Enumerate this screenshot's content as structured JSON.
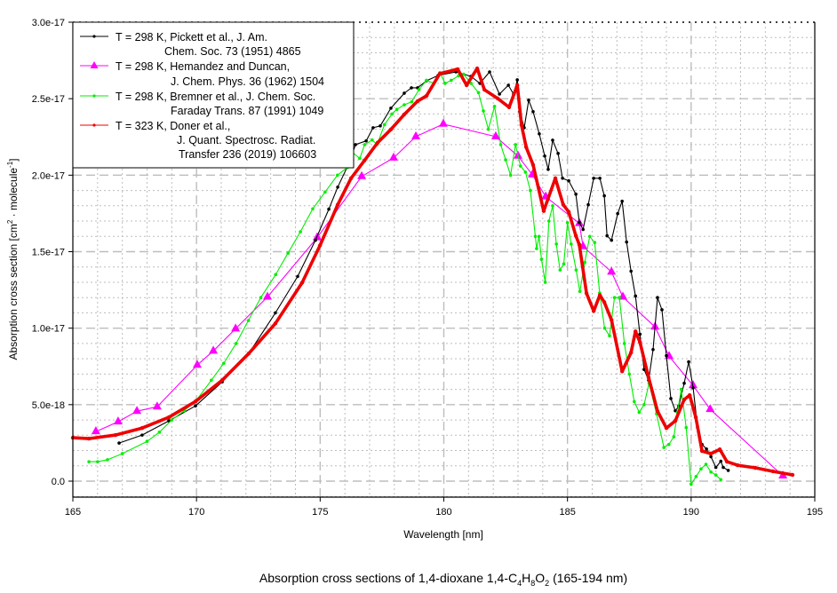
{
  "chart_data": {
    "type": "line",
    "title": "Absorption cross sections of 1,4-dioxane 1,4-C4H8O2 (165-194 nm)",
    "title_parts": {
      "prefix": "Absorption cross sections of 1,4-dioxane 1,4-C",
      "s1": "4",
      "h": "H",
      "s2": "8",
      "o": "O",
      "s3": "2",
      "suffix": " (165-194 nm)"
    },
    "xlabel": "Wavelength [nm]",
    "ylabel": "Absorption cross section [cm2 · molecule-1]",
    "ylabel_parts": {
      "prefix": "Absorption cross section [cm",
      "sup1": "2",
      "mid": " · molecule",
      "sup2": "-1",
      "suffix": "]"
    },
    "xlim": [
      165,
      195
    ],
    "ylim": [
      -1.05e-18,
      3e-17
    ],
    "grid": true,
    "legend_position": "top-left",
    "x_ticks": [
      165,
      170,
      175,
      180,
      185,
      190,
      195
    ],
    "x_tick_labels": [
      "165",
      "170",
      "175",
      "180",
      "185",
      "190",
      "195"
    ],
    "y_ticks": [
      0,
      5e-18,
      1e-17,
      1.5e-17,
      2e-17,
      2.5e-17,
      3e-17
    ],
    "y_tick_labels": [
      "0.0",
      "5.0e-18",
      "1.0e-17",
      "1.5e-17",
      "2.0e-17",
      "2.5e-17",
      "3.0e-17"
    ],
    "y_unit_scale": 1e-18,
    "series": [
      {
        "name": "Pickett",
        "legend_line1": "T = 298 K, Pickett et al., J. Am.",
        "legend_line2": "Chem. Soc. 73 (1951) 4865",
        "color": "#000000",
        "marker": "dot",
        "x": [
          166.87,
          167.8,
          168.88,
          169.96,
          171.04,
          172.11,
          173.19,
          174.09,
          174.81,
          175.35,
          175.71,
          176.17,
          176.43,
          176.86,
          177.14,
          177.43,
          177.86,
          178.4,
          178.69,
          178.94,
          179.3,
          179.77,
          180.49,
          181.1,
          181.46,
          181.85,
          182.25,
          182.61,
          182.82,
          182.97,
          183.07,
          183.25,
          183.43,
          183.61,
          183.86,
          184.08,
          184.22,
          184.4,
          184.62,
          184.8,
          185.05,
          185.34,
          185.48,
          185.63,
          185.84,
          186.06,
          186.31,
          186.49,
          186.6,
          186.78,
          187.03,
          187.21,
          187.39,
          187.57,
          187.75,
          187.93,
          188.1,
          188.28,
          188.46,
          188.64,
          188.82,
          189.0,
          189.18,
          189.36,
          189.5,
          189.72,
          189.9,
          190.08,
          190.26,
          190.44,
          190.62,
          190.8,
          191.0,
          191.2,
          191.3,
          191.5
        ],
        "y": [
          2.49,
          3.01,
          3.94,
          4.92,
          6.49,
          8.34,
          11.0,
          13.38,
          15.75,
          17.78,
          19.22,
          20.79,
          22.0,
          22.24,
          23.1,
          23.22,
          24.38,
          25.36,
          25.71,
          25.71,
          26.17,
          26.52,
          26.75,
          26.46,
          26.0,
          26.75,
          25.3,
          25.88,
          25.3,
          26.23,
          24.15,
          23.1,
          24.9,
          24.15,
          22.7,
          21.25,
          20.38,
          22.29,
          21.42,
          19.8,
          19.63,
          18.76,
          16.91,
          16.45,
          18.07,
          19.8,
          19.8,
          18.65,
          16.04,
          15.75,
          17.49,
          18.3,
          15.63,
          13.72,
          12.1,
          9.6,
          7.3,
          6.6,
          8.6,
          12.0,
          11.2,
          8.2,
          5.4,
          4.6,
          4.9,
          6.4,
          7.8,
          6.1,
          3.5,
          2.4,
          2.1,
          1.6,
          0.9,
          1.3,
          0.9,
          0.7
        ]
      },
      {
        "name": "Hernandez",
        "legend_line1": "T = 298 K, Hemandez and Duncan,",
        "legend_line2": "J. Chem. Phys. 36 (1962) 1504",
        "color": "#ff00ff",
        "marker": "triangle",
        "x": [
          165.93,
          166.83,
          167.59,
          168.41,
          170.03,
          170.68,
          171.58,
          172.87,
          174.88,
          176.68,
          177.97,
          178.87,
          179.98,
          182.1,
          183.0,
          183.58,
          184.12,
          185.48,
          185.63,
          186.78,
          187.24,
          188.54,
          189.11,
          190.08,
          190.77,
          193.71
        ],
        "y": [
          3.24,
          3.88,
          4.57,
          4.86,
          7.59,
          8.51,
          9.96,
          12.04,
          15.92,
          19.92,
          21.13,
          22.52,
          23.34,
          22.52,
          21.25,
          20.03,
          18.59,
          16.85,
          15.34,
          13.67,
          12.04,
          10.08,
          8.16,
          6.25,
          4.69,
          0.35
        ]
      },
      {
        "name": "Bremner",
        "legend_line1": "T = 298 K, Bremner et al., J. Chem. Soc.",
        "legend_line2": "Faraday Trans. 87 (1991) 1049",
        "color": "#00ee00",
        "marker": "dot",
        "x": [
          165.65,
          166.0,
          166.4,
          167.0,
          168.0,
          168.5,
          169.0,
          169.5,
          170.0,
          170.6,
          171.1,
          171.6,
          172.1,
          172.6,
          173.2,
          173.7,
          174.2,
          174.7,
          175.2,
          175.7,
          176.1,
          176.3,
          176.6,
          176.8,
          177.1,
          177.3,
          177.6,
          177.9,
          178.1,
          178.4,
          178.7,
          179.0,
          179.3,
          179.6,
          179.84,
          180.05,
          180.3,
          180.6,
          180.8,
          181.1,
          181.4,
          181.6,
          181.8,
          182.05,
          182.3,
          182.5,
          182.7,
          182.9,
          183.1,
          183.3,
          183.5,
          183.7,
          183.75,
          183.85,
          183.95,
          184.1,
          184.25,
          184.4,
          184.55,
          184.7,
          184.85,
          185.0,
          185.15,
          185.35,
          185.5,
          185.7,
          185.9,
          186.1,
          186.3,
          186.5,
          186.7,
          186.9,
          187.1,
          187.3,
          187.5,
          187.7,
          187.9,
          188.1,
          188.3,
          188.6,
          188.9,
          189.1,
          189.3,
          189.45,
          189.6,
          189.8,
          190.0,
          190.2,
          190.4,
          190.6,
          190.8,
          191.0,
          191.2
        ],
        "y": [
          1.27,
          1.27,
          1.4,
          1.8,
          2.6,
          3.2,
          4.0,
          4.6,
          5.3,
          6.6,
          7.7,
          9.0,
          10.5,
          12.0,
          13.5,
          14.9,
          16.3,
          17.8,
          18.9,
          20.0,
          20.5,
          21.5,
          21.1,
          22.0,
          22.3,
          22.0,
          23.3,
          24.0,
          24.3,
          24.6,
          24.8,
          25.6,
          26.2,
          26.0,
          26.7,
          26.0,
          26.2,
          26.5,
          26.6,
          26.0,
          25.4,
          24.2,
          23.0,
          24.5,
          22.0,
          21.0,
          20.0,
          22.0,
          20.6,
          20.2,
          19.0,
          16.0,
          15.2,
          16.0,
          14.5,
          13.0,
          17.0,
          18.0,
          15.5,
          13.8,
          14.2,
          16.9,
          15.5,
          13.8,
          12.4,
          14.3,
          16.0,
          15.6,
          12.3,
          10.0,
          9.5,
          12.0,
          12.0,
          9.0,
          7.0,
          5.2,
          4.5,
          5.0,
          6.4,
          4.4,
          2.2,
          2.4,
          2.9,
          4.5,
          6.0,
          3.5,
          -0.2,
          0.3,
          0.8,
          1.1,
          0.6,
          0.4,
          0.1
        ]
      },
      {
        "name": "Doner",
        "legend_line1": "T = 323 K, Doner et al.,",
        "legend_line2": "J. Quant. Spectrosc. Radiat.",
        "legend_line3": "Transfer 236 (2019) 106603",
        "color": "#ee0000",
        "marker": "dot",
        "x": [
          165.0,
          165.65,
          166.72,
          167.8,
          168.88,
          169.96,
          171.04,
          172.11,
          173.19,
          174.27,
          174.99,
          175.71,
          176.25,
          176.79,
          177.32,
          177.86,
          178.4,
          178.94,
          179.3,
          179.84,
          180.56,
          180.92,
          181.35,
          181.64,
          182.18,
          182.64,
          182.97,
          183.14,
          183.33,
          183.61,
          184.04,
          184.51,
          184.83,
          185.05,
          185.34,
          185.48,
          185.77,
          186.06,
          186.31,
          186.49,
          186.78,
          187.21,
          187.57,
          187.75,
          187.93,
          188.28,
          188.64,
          189.0,
          189.36,
          189.72,
          189.94,
          190.19,
          190.44,
          190.8,
          191.16,
          191.45,
          191.88,
          192.6,
          193.31,
          194.1
        ],
        "y": [
          2.84,
          2.78,
          3.01,
          3.47,
          4.17,
          5.21,
          6.6,
          8.34,
          10.31,
          12.97,
          15.4,
          18.07,
          19.8,
          20.96,
          22.12,
          22.99,
          23.97,
          24.84,
          25.19,
          26.64,
          26.93,
          25.88,
          26.98,
          25.59,
          25.01,
          24.44,
          25.88,
          23.28,
          21.83,
          20.67,
          17.66,
          19.8,
          18.07,
          17.6,
          16.04,
          15.46,
          12.28,
          11.12,
          12.16,
          11.7,
          10.54,
          7.18,
          8.4,
          9.79,
          9.09,
          6.77,
          4.57,
          3.47,
          3.94,
          5.33,
          5.62,
          4.17,
          1.97,
          1.8,
          2.08,
          1.27,
          1.04,
          0.87,
          0.64,
          0.41
        ]
      }
    ]
  }
}
